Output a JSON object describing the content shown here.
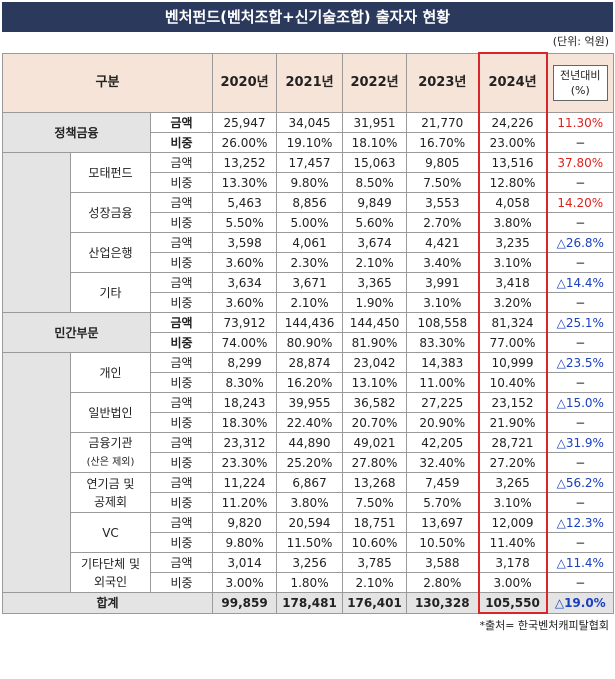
{
  "header": {
    "title": "벤처펀드(벤처조합+신기술조합) 출자자 현황",
    "unit": "(단위: 억원)"
  },
  "table": {
    "columns": [
      "구분",
      "2020년",
      "2021년",
      "2022년",
      "2023년",
      "2024년"
    ],
    "change_header": [
      "전년대비",
      "(%)"
    ],
    "sections": [
      {
        "label": "정책금융",
        "rows": [
          {
            "metric": "금액",
            "values": [
              "25,947",
              "34,045",
              "31,951",
              "21,770",
              "24,226"
            ],
            "change": "11.30%",
            "change_color": "#e0201b"
          },
          {
            "metric": "비중",
            "values": [
              "26.00%",
              "19.10%",
              "18.10%",
              "16.70%",
              "23.00%"
            ],
            "change": "−",
            "change_color": "#222222"
          }
        ],
        "subgroups": [
          {
            "label": [
              "모태펀드"
            ],
            "rows": [
              {
                "metric": "금액",
                "values": [
                  "13,252",
                  "17,457",
                  "15,063",
                  "9,805",
                  "13,516"
                ],
                "change": "37.80%",
                "change_color": "#e0201b"
              },
              {
                "metric": "비중",
                "values": [
                  "13.30%",
                  "9.80%",
                  "8.50%",
                  "7.50%",
                  "12.80%"
                ],
                "change": "−",
                "change_color": "#222222"
              }
            ]
          },
          {
            "label": [
              "성장금융"
            ],
            "rows": [
              {
                "metric": "금액",
                "values": [
                  "5,463",
                  "8,856",
                  "9,849",
                  "3,553",
                  "4,058"
                ],
                "change": "14.20%",
                "change_color": "#e0201b"
              },
              {
                "metric": "비중",
                "values": [
                  "5.50%",
                  "5.00%",
                  "5.60%",
                  "2.70%",
                  "3.80%"
                ],
                "change": "−",
                "change_color": "#222222"
              }
            ]
          },
          {
            "label": [
              "산업은행"
            ],
            "rows": [
              {
                "metric": "금액",
                "values": [
                  "3,598",
                  "4,061",
                  "3,674",
                  "4,421",
                  "3,235"
                ],
                "change": "△26.8%",
                "change_color": "#1a3fbf"
              },
              {
                "metric": "비중",
                "values": [
                  "3.60%",
                  "2.30%",
                  "2.10%",
                  "3.40%",
                  "3.10%"
                ],
                "change": "−",
                "change_color": "#222222"
              }
            ]
          },
          {
            "label": [
              "기타"
            ],
            "rows": [
              {
                "metric": "금액",
                "values": [
                  "3,634",
                  "3,671",
                  "3,365",
                  "3,991",
                  "3,418"
                ],
                "change": "△14.4%",
                "change_color": "#1a3fbf"
              },
              {
                "metric": "비중",
                "values": [
                  "3.60%",
                  "2.10%",
                  "1.90%",
                  "3.10%",
                  "3.20%"
                ],
                "change": "−",
                "change_color": "#222222"
              }
            ]
          }
        ]
      },
      {
        "label": "민간부문",
        "rows": [
          {
            "metric": "금액",
            "values": [
              "73,912",
              "144,436",
              "144,450",
              "108,558",
              "81,324"
            ],
            "change": "△25.1%",
            "change_color": "#1a3fbf"
          },
          {
            "metric": "비중",
            "values": [
              "74.00%",
              "80.90%",
              "81.90%",
              "83.30%",
              "77.00%"
            ],
            "change": "−",
            "change_color": "#222222"
          }
        ],
        "subgroups": [
          {
            "label": [
              "개인"
            ],
            "rows": [
              {
                "metric": "금액",
                "values": [
                  "8,299",
                  "28,874",
                  "23,042",
                  "14,383",
                  "10,999"
                ],
                "change": "△23.5%",
                "change_color": "#1a3fbf"
              },
              {
                "metric": "비중",
                "values": [
                  "8.30%",
                  "16.20%",
                  "13.10%",
                  "11.00%",
                  "10.40%"
                ],
                "change": "−",
                "change_color": "#222222"
              }
            ]
          },
          {
            "label": [
              "일반법인"
            ],
            "rows": [
              {
                "metric": "금액",
                "values": [
                  "18,243",
                  "39,955",
                  "36,582",
                  "27,225",
                  "23,152"
                ],
                "change": "△15.0%",
                "change_color": "#1a3fbf"
              },
              {
                "metric": "비중",
                "values": [
                  "18.30%",
                  "22.40%",
                  "20.70%",
                  "20.90%",
                  "21.90%"
                ],
                "change": "−",
                "change_color": "#222222"
              }
            ]
          },
          {
            "label": [
              "금융기관",
              "(산은 제외)"
            ],
            "rows": [
              {
                "metric": "금액",
                "values": [
                  "23,312",
                  "44,890",
                  "49,021",
                  "42,205",
                  "28,721"
                ],
                "change": "△31.9%",
                "change_color": "#1a3fbf"
              },
              {
                "metric": "비중",
                "values": [
                  "23.30%",
                  "25.20%",
                  "27.80%",
                  "32.40%",
                  "27.20%"
                ],
                "change": "−",
                "change_color": "#222222"
              }
            ]
          },
          {
            "label": [
              "연기금 및",
              "공제회"
            ],
            "rows": [
              {
                "metric": "금액",
                "values": [
                  "11,224",
                  "6,867",
                  "13,268",
                  "7,459",
                  "3,265"
                ],
                "change": "△56.2%",
                "change_color": "#1a3fbf"
              },
              {
                "metric": "비중",
                "values": [
                  "11.20%",
                  "3.80%",
                  "7.50%",
                  "5.70%",
                  "3.10%"
                ],
                "change": "−",
                "change_color": "#222222"
              }
            ]
          },
          {
            "label": [
              "VC"
            ],
            "rows": [
              {
                "metric": "금액",
                "values": [
                  "9,820",
                  "20,594",
                  "18,751",
                  "13,697",
                  "12,009"
                ],
                "change": "△12.3%",
                "change_color": "#1a3fbf"
              },
              {
                "metric": "비중",
                "values": [
                  "9.80%",
                  "11.50%",
                  "10.60%",
                  "10.50%",
                  "11.40%"
                ],
                "change": "−",
                "change_color": "#222222"
              }
            ]
          },
          {
            "label": [
              "기타단체 및",
              "외국인"
            ],
            "rows": [
              {
                "metric": "금액",
                "values": [
                  "3,014",
                  "3,256",
                  "3,785",
                  "3,588",
                  "3,178"
                ],
                "change": "△11.4%",
                "change_color": "#1a3fbf"
              },
              {
                "metric": "비중",
                "values": [
                  "3.00%",
                  "1.80%",
                  "2.10%",
                  "2.80%",
                  "3.00%"
                ],
                "change": "−",
                "change_color": "#222222"
              }
            ]
          }
        ]
      }
    ],
    "total": {
      "label": "합계",
      "values": [
        "99,859",
        "178,481",
        "176,401",
        "130,328",
        "105,550"
      ],
      "change": "△19.0%",
      "change_color": "#1a3fbf"
    }
  },
  "footer": {
    "source": "*출처= 한국벤처캐피탈협회"
  }
}
